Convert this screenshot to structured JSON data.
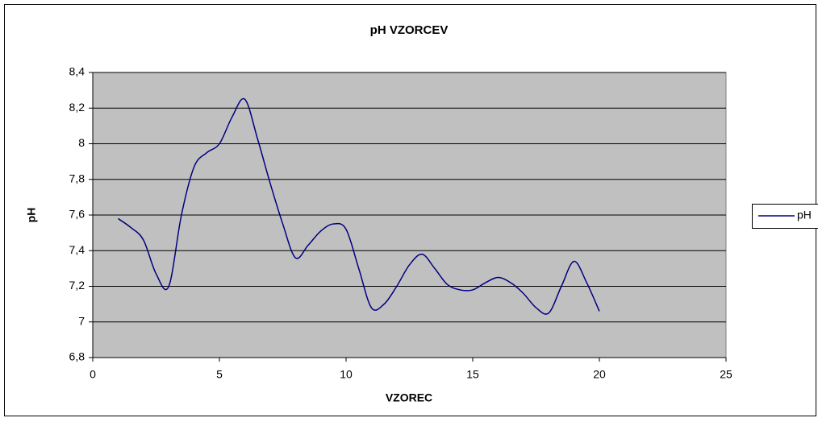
{
  "chart_data": {
    "type": "line",
    "title": "pH VZORCEV",
    "x_label": "VZOREC",
    "y_label": "pH",
    "x": [
      1,
      1.5,
      2,
      2.5,
      3,
      3.5,
      4,
      4.5,
      5,
      5.5,
      6,
      6.5,
      7,
      7.5,
      8,
      8.5,
      9,
      9.5,
      10,
      10.5,
      11,
      11.5,
      12,
      12.5,
      13,
      13.5,
      14,
      14.5,
      15,
      15.5,
      16,
      16.5,
      17,
      17.5,
      18,
      18.5,
      19,
      19.5,
      20
    ],
    "series": [
      {
        "name": "pH",
        "color": "#000080",
        "values": [
          7.58,
          7.53,
          7.46,
          7.27,
          7.2,
          7.6,
          7.87,
          7.95,
          8.0,
          8.15,
          8.25,
          8.03,
          7.78,
          7.55,
          7.36,
          7.43,
          7.51,
          7.55,
          7.52,
          7.3,
          7.08,
          7.1,
          7.2,
          7.32,
          7.38,
          7.3,
          7.21,
          7.18,
          7.18,
          7.22,
          7.25,
          7.22,
          7.16,
          7.08,
          7.05,
          7.2,
          7.34,
          7.22,
          7.06
        ]
      }
    ],
    "xlim": [
      0,
      25
    ],
    "xticks": [
      0,
      5,
      10,
      15,
      20,
      25
    ],
    "ylim": [
      6.8,
      8.4
    ],
    "yticks": [
      {
        "value": 6.8,
        "label": "6,8"
      },
      7,
      {
        "value": 7.2,
        "label": "7,2"
      },
      {
        "value": 7.4,
        "label": "7,4"
      },
      {
        "value": 7.6,
        "label": "7,6"
      },
      {
        "value": 7.8,
        "label": "7,8"
      },
      8,
      {
        "value": 8.2,
        "label": "8,2"
      },
      {
        "value": 8.4,
        "label": "8,4"
      }
    ],
    "grid": true,
    "legend": "right",
    "plot_background": "#c0c0c0",
    "smooth": true
  }
}
